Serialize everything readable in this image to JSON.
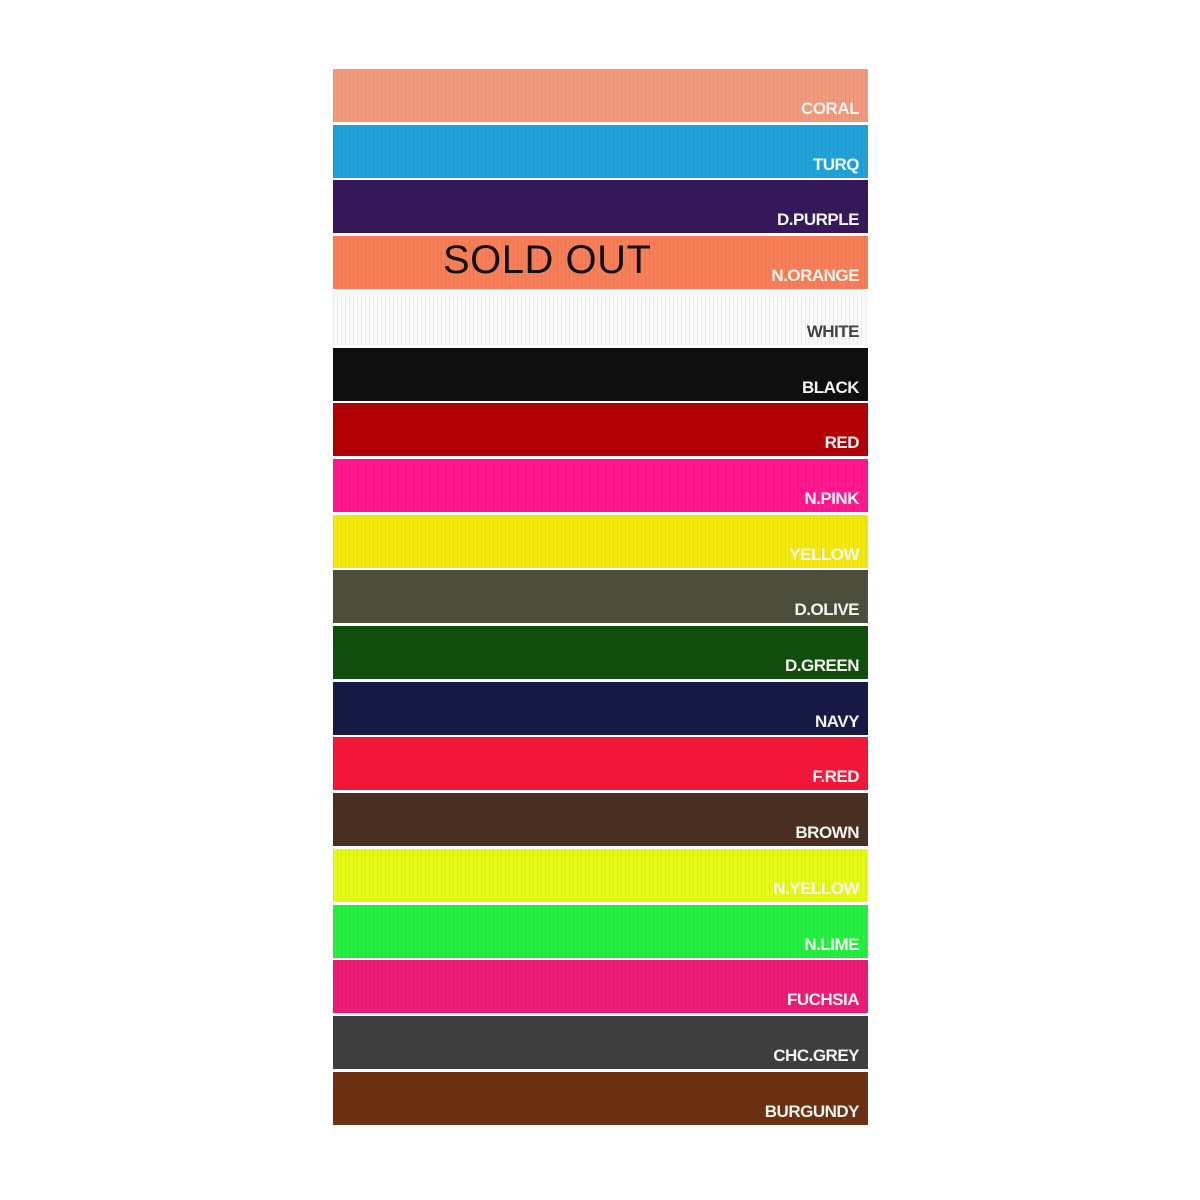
{
  "swatches": [
    {
      "name": "CORAL",
      "color": "#f29b7e"
    },
    {
      "name": "TURQ",
      "color": "#23a2da"
    },
    {
      "name": "D.PURPLE",
      "color": "#35195a"
    },
    {
      "name": "N.ORANGE",
      "color": "#f7805a",
      "badge": "SOLD OUT"
    },
    {
      "name": "WHITE",
      "color": "#fbfbfb",
      "label_color": "#444444"
    },
    {
      "name": "BLACK",
      "color": "#0f0f0f"
    },
    {
      "name": "RED",
      "color": "#b30008"
    },
    {
      "name": "N.PINK",
      "color": "#ff1a90"
    },
    {
      "name": "YELLOW",
      "color": "#f5ea10"
    },
    {
      "name": "D.OLIVE",
      "color": "#4d4f3c"
    },
    {
      "name": "D.GREEN",
      "color": "#124f0e"
    },
    {
      "name": "NAVY",
      "color": "#171a45"
    },
    {
      "name": "F.RED",
      "color": "#f5173a"
    },
    {
      "name": "BROWN",
      "color": "#4a3022"
    },
    {
      "name": "N.YELLOW",
      "color": "#e6fb17"
    },
    {
      "name": "N.LIME",
      "color": "#27ee43"
    },
    {
      "name": "FUCHSIA",
      "color": "#ea1d77"
    },
    {
      "name": "CHC.GREY",
      "color": "#3f3f3f"
    },
    {
      "name": "BURGUNDY",
      "color": "#6b3214"
    }
  ]
}
